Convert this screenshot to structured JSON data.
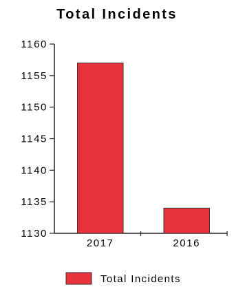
{
  "chart_data": {
    "type": "bar",
    "title": "Total Incidents",
    "categories": [
      "2017",
      "2016"
    ],
    "series": [
      {
        "name": "Total Incidents",
        "values": [
          1157,
          1134
        ]
      }
    ],
    "ylim": [
      1130,
      1160
    ],
    "yticks": [
      1130,
      1135,
      1140,
      1145,
      1150,
      1155,
      1160
    ],
    "legend_position": "bottom",
    "grid": false
  },
  "colors": {
    "bar_fill": "#e8323c",
    "bar_stroke": "#333333",
    "axis": "#222222"
  }
}
